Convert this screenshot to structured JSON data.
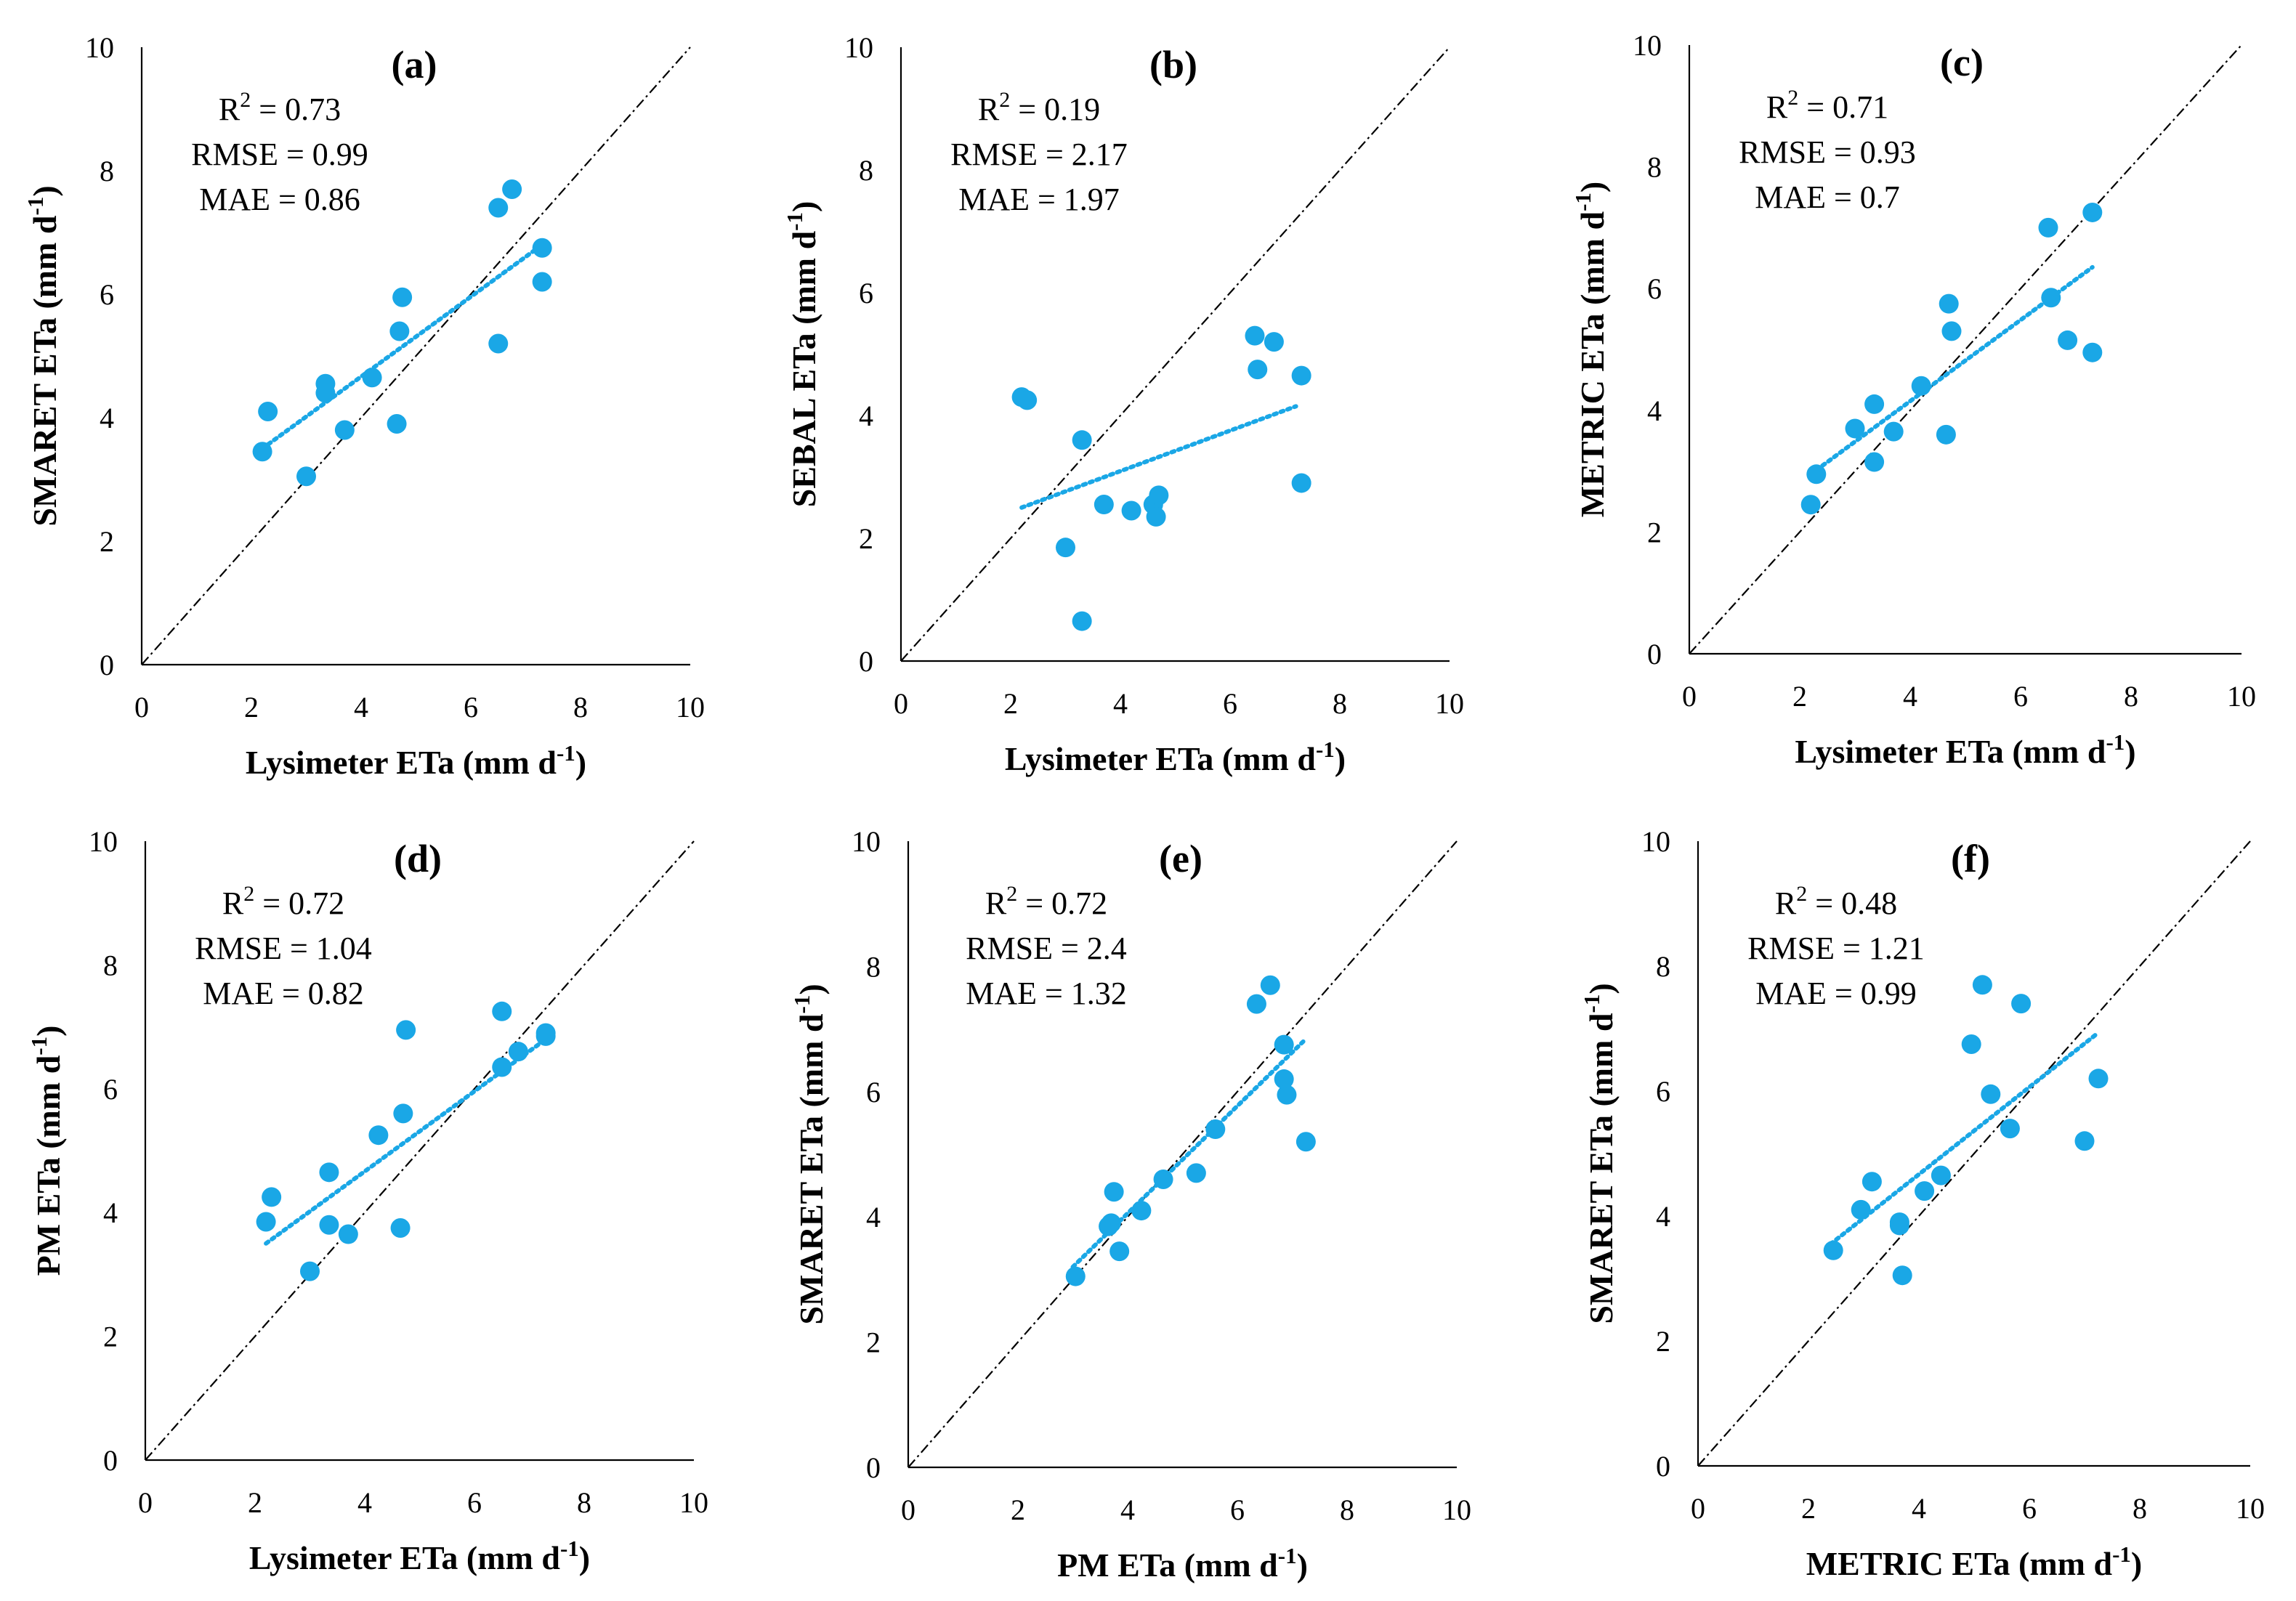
{
  "figure": {
    "colors": {
      "point": "#1aa7e6",
      "trend": "#1aa7e6",
      "axis": "#000000",
      "identity": "#000000"
    }
  },
  "chart_data": [
    {
      "type": "scatter",
      "panel": "(a)",
      "xlabel_main": "Lysimeter ETa (mm d",
      "ylabel_main": "SMARET ETa (mm d",
      "unit_exp": "-1",
      "unit_close": ")",
      "xlim": [
        0,
        10
      ],
      "ylim": [
        0,
        10
      ],
      "xticks": [
        "0",
        "2",
        "4",
        "6",
        "8",
        "10"
      ],
      "yticks": [
        "0",
        "2",
        "4",
        "6",
        "8",
        "10"
      ],
      "stats": {
        "r2_prefix": "R",
        "r2_exp": "2",
        "r2_value": " = 0.73",
        "rmse": "RMSE = 0.99",
        "mae": "MAE = 0.86"
      },
      "trend": {
        "x0": 2.2,
        "y0": 3.5,
        "x1": 7.3,
        "y1": 6.8
      },
      "points": [
        [
          2.2,
          3.45
        ],
        [
          2.3,
          4.1
        ],
        [
          3.0,
          3.05
        ],
        [
          3.35,
          4.55
        ],
        [
          3.35,
          4.4
        ],
        [
          3.7,
          3.8
        ],
        [
          4.2,
          4.65
        ],
        [
          4.65,
          3.9
        ],
        [
          4.7,
          5.4
        ],
        [
          4.75,
          5.95
        ],
        [
          6.5,
          5.2
        ],
        [
          6.5,
          7.4
        ],
        [
          6.75,
          7.7
        ],
        [
          7.3,
          6.75
        ],
        [
          7.3,
          6.2
        ]
      ]
    },
    {
      "type": "scatter",
      "panel": "(b)",
      "xlabel_main": "Lysimeter ETa (mm d",
      "ylabel_main": "SEBAL ETa (mm d",
      "unit_exp": "-1",
      "unit_close": ")",
      "xlim": [
        0,
        10
      ],
      "ylim": [
        0,
        10
      ],
      "xticks": [
        "0",
        "2",
        "4",
        "6",
        "8",
        "10"
      ],
      "yticks": [
        "0",
        "2",
        "4",
        "6",
        "8",
        "10"
      ],
      "stats": {
        "r2_prefix": "R",
        "r2_exp": "2",
        "r2_value": " = 0.19",
        "rmse": "RMSE = 2.17",
        "mae": "MAE = 1.97"
      },
      "trend": {
        "x0": 2.2,
        "y0": 2.5,
        "x1": 7.2,
        "y1": 4.15
      },
      "points": [
        [
          2.2,
          4.3
        ],
        [
          2.3,
          4.25
        ],
        [
          3.0,
          1.85
        ],
        [
          3.3,
          3.6
        ],
        [
          3.3,
          0.65
        ],
        [
          3.7,
          2.55
        ],
        [
          4.2,
          2.45
        ],
        [
          4.6,
          2.55
        ],
        [
          4.65,
          2.35
        ],
        [
          4.7,
          2.7
        ],
        [
          6.45,
          5.3
        ],
        [
          6.5,
          4.75
        ],
        [
          6.8,
          5.2
        ],
        [
          7.3,
          4.65
        ],
        [
          7.3,
          2.9
        ]
      ]
    },
    {
      "type": "scatter",
      "panel": "(c)",
      "xlabel_main": "Lysimeter ETa (mm d",
      "ylabel_main": "METRIC ETa (mm d",
      "unit_exp": "-1",
      "unit_close": ")",
      "xlim": [
        0,
        10
      ],
      "ylim": [
        0,
        10
      ],
      "xticks": [
        "0",
        "2",
        "4",
        "6",
        "8",
        "10"
      ],
      "yticks": [
        "0",
        "2",
        "4",
        "6",
        "8",
        "10"
      ],
      "stats": {
        "r2_prefix": "R",
        "r2_exp": "2",
        "r2_value": " = 0.71",
        "rmse": "RMSE = 0.93",
        "mae": "MAE = 0.7"
      },
      "trend": {
        "x0": 2.2,
        "y0": 2.95,
        "x1": 7.3,
        "y1": 6.35
      },
      "points": [
        [
          2.2,
          2.45
        ],
        [
          2.3,
          2.95
        ],
        [
          3.0,
          3.7
        ],
        [
          3.35,
          4.1
        ],
        [
          3.35,
          3.15
        ],
        [
          3.7,
          3.65
        ],
        [
          4.2,
          4.4
        ],
        [
          4.65,
          3.6
        ],
        [
          4.7,
          5.75
        ],
        [
          4.75,
          5.3
        ],
        [
          6.5,
          7.0
        ],
        [
          6.55,
          5.85
        ],
        [
          6.85,
          5.15
        ],
        [
          7.3,
          7.25
        ],
        [
          7.3,
          4.95
        ]
      ]
    },
    {
      "type": "scatter",
      "panel": "(d)",
      "xlabel_main": "Lysimeter ETa (mm d",
      "ylabel_main": "PM ETa (mm d",
      "unit_exp": "-1",
      "unit_close": ")",
      "xlim": [
        0,
        10
      ],
      "ylim": [
        0,
        10
      ],
      "xticks": [
        "0",
        "2",
        "4",
        "6",
        "8",
        "10"
      ],
      "yticks": [
        "0",
        "2",
        "4",
        "6",
        "8",
        "10"
      ],
      "stats": {
        "r2_prefix": "R",
        "r2_exp": "2",
        "r2_value": " = 0.72",
        "rmse": "RMSE = 1.04",
        "mae": "MAE = 0.82"
      },
      "trend": {
        "x0": 2.2,
        "y0": 3.5,
        "x1": 7.3,
        "y1": 6.8
      },
      "points": [
        [
          2.2,
          3.85
        ],
        [
          2.3,
          4.25
        ],
        [
          3.0,
          3.05
        ],
        [
          3.35,
          4.65
        ],
        [
          3.35,
          3.8
        ],
        [
          3.7,
          3.65
        ],
        [
          4.25,
          5.25
        ],
        [
          4.65,
          3.75
        ],
        [
          4.7,
          5.6
        ],
        [
          4.75,
          6.95
        ],
        [
          6.5,
          7.25
        ],
        [
          6.5,
          6.35
        ],
        [
          6.8,
          6.6
        ],
        [
          7.3,
          6.85
        ],
        [
          7.3,
          6.9
        ]
      ]
    },
    {
      "type": "scatter",
      "panel": "(e)",
      "xlabel_main": "PM ETa (mm d",
      "ylabel_main": "SMARET ETa (mm d",
      "unit_exp": "-1",
      "unit_close": ")",
      "xlim": [
        0,
        10
      ],
      "ylim": [
        0,
        10
      ],
      "xticks": [
        "0",
        "2",
        "4",
        "6",
        "8",
        "10"
      ],
      "yticks": [
        "0",
        "2",
        "4",
        "6",
        "8",
        "10"
      ],
      "stats": {
        "r2_prefix": "R",
        "r2_exp": "2",
        "r2_value": " = 0.72",
        "rmse": "RMSE = 2.4",
        "mae": "MAE = 1.32"
      },
      "trend": {
        "x0": 3.0,
        "y0": 3.2,
        "x1": 7.2,
        "y1": 6.8
      },
      "points": [
        [
          3.05,
          3.05
        ],
        [
          3.65,
          3.85
        ],
        [
          3.7,
          3.9
        ],
        [
          3.75,
          4.4
        ],
        [
          3.85,
          3.45
        ],
        [
          4.25,
          4.1
        ],
        [
          4.65,
          4.6
        ],
        [
          5.25,
          4.7
        ],
        [
          5.6,
          5.4
        ],
        [
          6.35,
          7.4
        ],
        [
          6.6,
          7.7
        ],
        [
          6.85,
          6.75
        ],
        [
          6.85,
          6.2
        ],
        [
          6.9,
          5.95
        ],
        [
          7.25,
          5.2
        ]
      ]
    },
    {
      "type": "scatter",
      "panel": "(f)",
      "xlabel_main": "METRIC ETa (mm d",
      "ylabel_main": "SMARET ETa (mm d",
      "unit_exp": "-1",
      "unit_close": ")",
      "xlim": [
        0,
        10
      ],
      "ylim": [
        0,
        10
      ],
      "xticks": [
        "0",
        "2",
        "4",
        "6",
        "8",
        "10"
      ],
      "yticks": [
        "0",
        "2",
        "4",
        "6",
        "8",
        "10"
      ],
      "stats": {
        "r2_prefix": "R",
        "r2_exp": "2",
        "r2_value": " = 0.48",
        "rmse": "RMSE = 1.21",
        "mae": "MAE = 0.99"
      },
      "trend": {
        "x0": 2.4,
        "y0": 3.55,
        "x1": 7.2,
        "y1": 6.9
      },
      "points": [
        [
          2.45,
          3.45
        ],
        [
          2.95,
          4.1
        ],
        [
          3.15,
          4.55
        ],
        [
          3.65,
          3.85
        ],
        [
          3.65,
          3.9
        ],
        [
          3.7,
          3.05
        ],
        [
          4.1,
          4.4
        ],
        [
          4.4,
          4.65
        ],
        [
          4.95,
          6.75
        ],
        [
          5.15,
          7.7
        ],
        [
          5.3,
          5.95
        ],
        [
          5.65,
          5.4
        ],
        [
          5.85,
          7.4
        ],
        [
          7.0,
          5.2
        ],
        [
          7.25,
          6.2
        ]
      ]
    }
  ]
}
